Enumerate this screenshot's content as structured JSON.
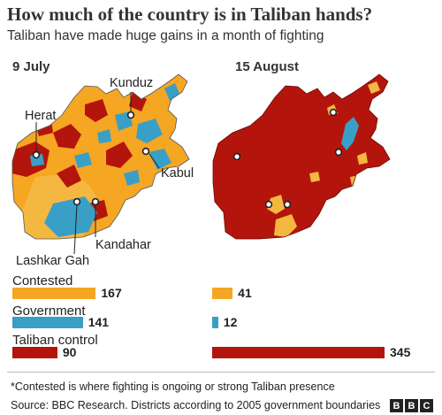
{
  "title": "How much of the country is in Taliban hands?",
  "subtitle": "Taliban have made huge gains in a month of fighting",
  "maps": [
    {
      "date": "9 July"
    },
    {
      "date": "15 August"
    }
  ],
  "cities": {
    "kunduz": "Kunduz",
    "herat": "Herat",
    "kabul": "Kabul",
    "kandahar": "Kandahar",
    "lashkar_gah": "Lashkar Gah"
  },
  "colors": {
    "contested": "#f5a623",
    "government": "#3a9fc6",
    "taliban": "#b3150c",
    "map_light": "#f4b841"
  },
  "chart_data": {
    "type": "bar",
    "categories": [
      "Contested",
      "Government",
      "Taliban control"
    ],
    "series": [
      {
        "name": "9 July",
        "values": [
          167,
          141,
          90
        ]
      },
      {
        "name": "15 August",
        "values": [
          41,
          12,
          345
        ]
      }
    ]
  },
  "footnote": "*Contested is where fighting is ongoing or strong Taliban presence",
  "source": "Source: BBC Research. Districts according to 2005 government boundaries",
  "logo": [
    "B",
    "B",
    "C"
  ]
}
